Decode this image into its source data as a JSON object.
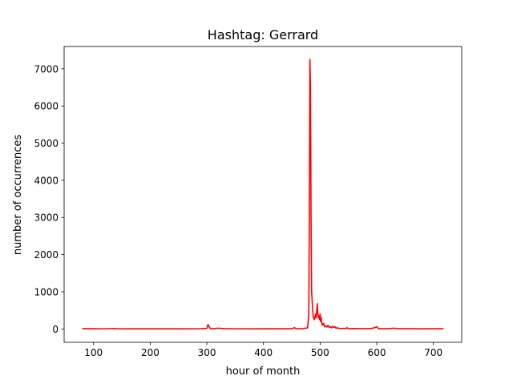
{
  "chart_data": {
    "type": "line",
    "title": "Hashtag: Gerrard",
    "xlabel": "hour of month",
    "ylabel": "number of occurrences",
    "xlim": [
      48,
      750
    ],
    "ylim": [
      -360,
      7600
    ],
    "xticks": [
      100,
      200,
      300,
      400,
      500,
      600,
      700
    ],
    "yticks": [
      0,
      1000,
      2000,
      3000,
      4000,
      5000,
      6000,
      7000
    ],
    "grid": false,
    "series": [
      {
        "color": "#ff0000",
        "points": [
          [
            80,
            8
          ],
          [
            100,
            5
          ],
          [
            120,
            4
          ],
          [
            138,
            12
          ],
          [
            140,
            6
          ],
          [
            160,
            3
          ],
          [
            200,
            3
          ],
          [
            250,
            3
          ],
          [
            290,
            5
          ],
          [
            300,
            15
          ],
          [
            302,
            120
          ],
          [
            304,
            60
          ],
          [
            306,
            10
          ],
          [
            310,
            6
          ],
          [
            320,
            20
          ],
          [
            330,
            8
          ],
          [
            350,
            4
          ],
          [
            400,
            3
          ],
          [
            450,
            5
          ],
          [
            455,
            35
          ],
          [
            457,
            5
          ],
          [
            470,
            8
          ],
          [
            478,
            30
          ],
          [
            480,
            400
          ],
          [
            481,
            3000
          ],
          [
            482,
            7250
          ],
          [
            483,
            6500
          ],
          [
            484,
            3000
          ],
          [
            485,
            1000
          ],
          [
            487,
            500
          ],
          [
            488,
            300
          ],
          [
            490,
            250
          ],
          [
            492,
            400
          ],
          [
            493,
            300
          ],
          [
            494,
            500
          ],
          [
            495,
            680
          ],
          [
            496,
            400
          ],
          [
            497,
            300
          ],
          [
            498,
            350
          ],
          [
            499,
            250
          ],
          [
            500,
            400
          ],
          [
            501,
            200
          ],
          [
            502,
            300
          ],
          [
            503,
            150
          ],
          [
            504,
            100
          ],
          [
            506,
            150
          ],
          [
            508,
            60
          ],
          [
            510,
            80
          ],
          [
            512,
            50
          ],
          [
            514,
            100
          ],
          [
            516,
            40
          ],
          [
            518,
            60
          ],
          [
            520,
            30
          ],
          [
            522,
            70
          ],
          [
            524,
            40
          ],
          [
            526,
            60
          ],
          [
            528,
            20
          ],
          [
            530,
            30
          ],
          [
            535,
            10
          ],
          [
            540,
            15
          ],
          [
            545,
            10
          ],
          [
            548,
            30
          ],
          [
            550,
            5
          ],
          [
            560,
            10
          ],
          [
            570,
            5
          ],
          [
            580,
            8
          ],
          [
            590,
            10
          ],
          [
            598,
            40
          ],
          [
            600,
            60
          ],
          [
            602,
            20
          ],
          [
            605,
            5
          ],
          [
            620,
            5
          ],
          [
            630,
            20
          ],
          [
            640,
            5
          ],
          [
            660,
            5
          ],
          [
            680,
            3
          ],
          [
            700,
            5
          ],
          [
            718,
            5
          ]
        ]
      }
    ]
  }
}
